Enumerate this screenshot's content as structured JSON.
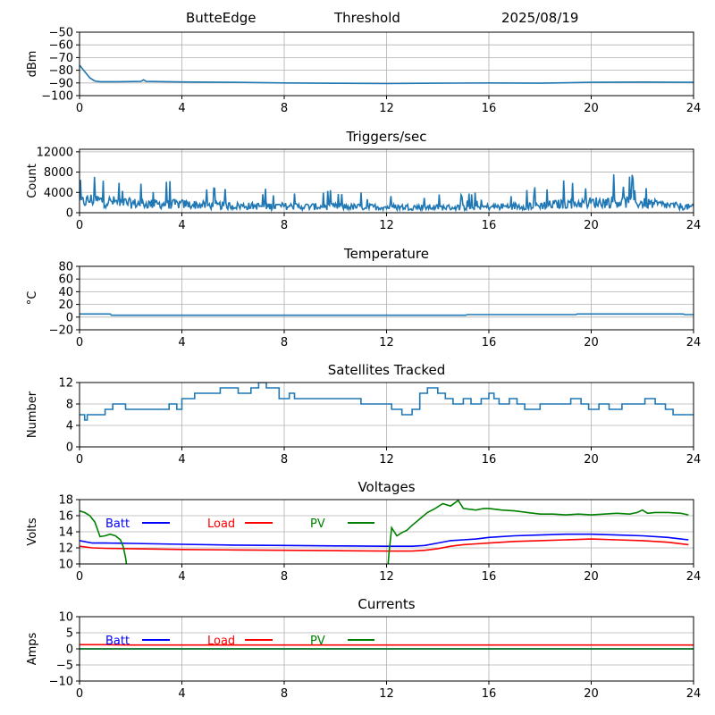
{
  "header": {
    "station": "ButteEdge",
    "mode": "Threshold",
    "date": "2025/08/19"
  },
  "colors": {
    "series_default": "#1f77b4",
    "batt": "#0000ff",
    "load": "#ff0000",
    "pv": "#008000",
    "grid": "#b0b0b0"
  },
  "chart_data": [
    {
      "type": "line",
      "title": "",
      "xlabel": "",
      "ylabel": "dBm",
      "xlim": [
        0,
        24
      ],
      "ylim": [
        -100,
        -50
      ],
      "xticks": [
        0,
        4,
        8,
        12,
        16,
        20,
        24
      ],
      "yticks": [
        -100,
        -90,
        -80,
        -70,
        -60,
        -50
      ],
      "grid": true,
      "series": [
        {
          "name": "",
          "color": "#1f77b4",
          "x": [
            0,
            0.2,
            0.4,
            0.6,
            0.8,
            1.5,
            2.4,
            2.5,
            2.6,
            4,
            6,
            8,
            10,
            12,
            14,
            16,
            18,
            20,
            22,
            24
          ],
          "y": [
            -76,
            -81,
            -86,
            -88.5,
            -89,
            -89,
            -88.8,
            -87.5,
            -88.8,
            -89.2,
            -89.5,
            -90,
            -90.3,
            -90.5,
            -90.2,
            -90,
            -90.2,
            -89.5,
            -89.3,
            -89.5
          ]
        }
      ]
    },
    {
      "type": "line",
      "title": "Triggers/sec",
      "xlabel": "",
      "ylabel": "Count",
      "xlim": [
        0,
        24
      ],
      "ylim": [
        0,
        12500
      ],
      "xticks": [
        0,
        4,
        8,
        12,
        16,
        20,
        24
      ],
      "yticks": [
        0,
        4000,
        8000,
        12000
      ],
      "grid": true,
      "noisy": true,
      "series": [
        {
          "name": "",
          "color": "#1f77b4",
          "x": [
            0,
            0.5,
            1,
            1.5,
            2,
            3,
            4,
            5,
            6,
            7,
            8,
            9,
            10,
            11,
            12,
            13,
            14,
            15,
            16,
            17,
            18,
            19,
            20,
            21,
            22,
            23,
            24
          ],
          "y": [
            2500,
            3200,
            2800,
            2600,
            2300,
            2100,
            2100,
            1800,
            1700,
            1600,
            1600,
            1500,
            1500,
            1400,
            1400,
            1400,
            1300,
            1300,
            1400,
            1600,
            1800,
            2200,
            2500,
            2700,
            2400,
            1800,
            1300
          ]
        }
      ]
    },
    {
      "type": "line",
      "title": "Temperature",
      "xlabel": "",
      "ylabel": "°C",
      "xlim": [
        0,
        24
      ],
      "ylim": [
        -20,
        80
      ],
      "xticks": [
        0,
        4,
        8,
        12,
        16,
        20,
        24
      ],
      "yticks": [
        -20,
        0,
        20,
        40,
        60,
        80
      ],
      "grid": true,
      "series": [
        {
          "name": "",
          "color": "#1f77b4",
          "x": [
            0,
            1.2,
            1.25,
            15.1,
            15.15,
            19.4,
            19.45,
            23.6,
            23.65,
            24
          ],
          "y": [
            5,
            5,
            3,
            3,
            4,
            4,
            5,
            5,
            4,
            4
          ]
        }
      ]
    },
    {
      "type": "line",
      "title": "Satellites Tracked",
      "xlabel": "",
      "ylabel": "Number",
      "xlim": [
        0,
        24
      ],
      "ylim": [
        0,
        12
      ],
      "xticks": [
        0,
        4,
        8,
        12,
        16,
        20,
        24
      ],
      "yticks": [
        0,
        4,
        8,
        12
      ],
      "grid": true,
      "step": true,
      "series": [
        {
          "name": "",
          "color": "#1f77b4",
          "x": [
            0,
            0.2,
            0.3,
            1.0,
            1.3,
            1.8,
            2.0,
            2.8,
            3.5,
            3.8,
            4.0,
            4.5,
            5.0,
            5.5,
            6.2,
            6.7,
            7.0,
            7.3,
            7.8,
            8.2,
            8.4,
            9.0,
            10.0,
            11.0,
            11.5,
            12.2,
            12.6,
            13.0,
            13.3,
            13.6,
            14.0,
            14.3,
            14.6,
            15.0,
            15.3,
            15.7,
            16.0,
            16.2,
            16.4,
            16.8,
            17.1,
            17.4,
            18.0,
            18.5,
            19.2,
            19.6,
            19.9,
            20.3,
            20.7,
            21.2,
            22.1,
            22.5,
            22.9,
            23.2,
            23.6,
            24.0
          ],
          "y": [
            6,
            5,
            6,
            7,
            8,
            7,
            7,
            7,
            8,
            7,
            9,
            10,
            10,
            11,
            10,
            11,
            12,
            11,
            9,
            10,
            9,
            9,
            9,
            8,
            8,
            7,
            6,
            7,
            10,
            11,
            10,
            9,
            8,
            9,
            8,
            9,
            10,
            9,
            8,
            9,
            8,
            7,
            8,
            8,
            9,
            8,
            7,
            8,
            7,
            8,
            9,
            8,
            7,
            6,
            6,
            6
          ]
        }
      ]
    },
    {
      "type": "line",
      "title": "Voltages",
      "xlabel": "",
      "ylabel": "Volts",
      "xlim": [
        0,
        24
      ],
      "ylim": [
        10,
        18
      ],
      "xticks": [
        0,
        4,
        8,
        12,
        16,
        20,
        24
      ],
      "yticks": [
        10,
        12,
        14,
        16,
        18
      ],
      "grid": true,
      "series": [
        {
          "name": "Batt",
          "color": "#0000ff",
          "x": [
            0,
            0.5,
            1,
            2,
            4,
            6,
            8,
            10,
            12,
            13,
            13.5,
            14,
            14.5,
            15,
            15.5,
            16,
            17,
            18,
            19,
            20,
            21,
            22,
            23,
            23.8
          ],
          "y": [
            12.9,
            12.6,
            12.6,
            12.55,
            12.45,
            12.35,
            12.3,
            12.25,
            12.2,
            12.2,
            12.3,
            12.6,
            12.9,
            13.0,
            13.1,
            13.3,
            13.5,
            13.6,
            13.7,
            13.7,
            13.6,
            13.5,
            13.3,
            13.0
          ]
        },
        {
          "name": "Load",
          "color": "#ff0000",
          "x": [
            0,
            0.5,
            1,
            2,
            4,
            6,
            8,
            10,
            12,
            13,
            13.5,
            14,
            14.5,
            15,
            15.5,
            16,
            17,
            18,
            19,
            20,
            21,
            22,
            23,
            23.8
          ],
          "y": [
            12.2,
            12.0,
            11.95,
            11.9,
            11.8,
            11.75,
            11.7,
            11.65,
            11.6,
            11.6,
            11.7,
            11.9,
            12.2,
            12.4,
            12.5,
            12.6,
            12.8,
            12.9,
            13.0,
            13.1,
            13.0,
            12.9,
            12.7,
            12.4
          ]
        },
        {
          "name": "PV",
          "color": "#008000",
          "segments": [
            {
              "x": [
                0,
                0.2,
                0.4,
                0.6,
                0.8,
                1.0,
                1.2,
                1.4,
                1.6,
                1.7,
                1.8,
                1.85
              ],
              "y": [
                16.6,
                16.4,
                16.0,
                15.2,
                13.4,
                13.5,
                13.7,
                13.5,
                13.0,
                12.2,
                10.8,
                9.5
              ]
            },
            {
              "x": [
                12.05,
                12.1,
                12.2,
                12.4,
                12.6,
                12.8,
                13.0,
                13.3,
                13.6,
                13.9,
                14.2,
                14.5,
                14.8,
                15.0,
                15.5,
                15.8,
                16.0,
                16.5,
                17.0,
                17.5,
                18.0,
                18.5,
                19.0,
                19.5,
                20.0,
                20.5,
                21.0,
                21.5,
                21.8,
                22.0,
                22.2,
                22.5,
                23.0,
                23.5,
                23.8
              ],
              "y": [
                9.5,
                11.5,
                14.5,
                13.5,
                13.9,
                14.2,
                14.8,
                15.6,
                16.4,
                16.9,
                17.5,
                17.2,
                17.9,
                16.9,
                16.7,
                16.9,
                16.9,
                16.7,
                16.6,
                16.4,
                16.2,
                16.2,
                16.1,
                16.2,
                16.1,
                16.2,
                16.3,
                16.2,
                16.4,
                16.7,
                16.3,
                16.4,
                16.4,
                16.3,
                16.1
              ]
            }
          ]
        }
      ]
    },
    {
      "type": "line",
      "title": "Currents",
      "xlabel": "",
      "ylabel": "Amps",
      "xlim": [
        0,
        24
      ],
      "ylim": [
        -10,
        10
      ],
      "xticks": [
        0,
        4,
        8,
        12,
        16,
        20,
        24
      ],
      "yticks": [
        -10,
        -5,
        0,
        5,
        10
      ],
      "grid": true,
      "series": [
        {
          "name": "Batt",
          "color": "#0000ff",
          "x": [
            0,
            24
          ],
          "y": [
            0,
            0
          ]
        },
        {
          "name": "Load",
          "color": "#ff0000",
          "x": [
            0,
            1,
            2,
            12,
            24
          ],
          "y": [
            1.3,
            1.3,
            1.2,
            1.2,
            1.2
          ]
        },
        {
          "name": "PV",
          "color": "#008000",
          "x": [
            0,
            24
          ],
          "y": [
            0,
            0
          ]
        }
      ]
    }
  ]
}
